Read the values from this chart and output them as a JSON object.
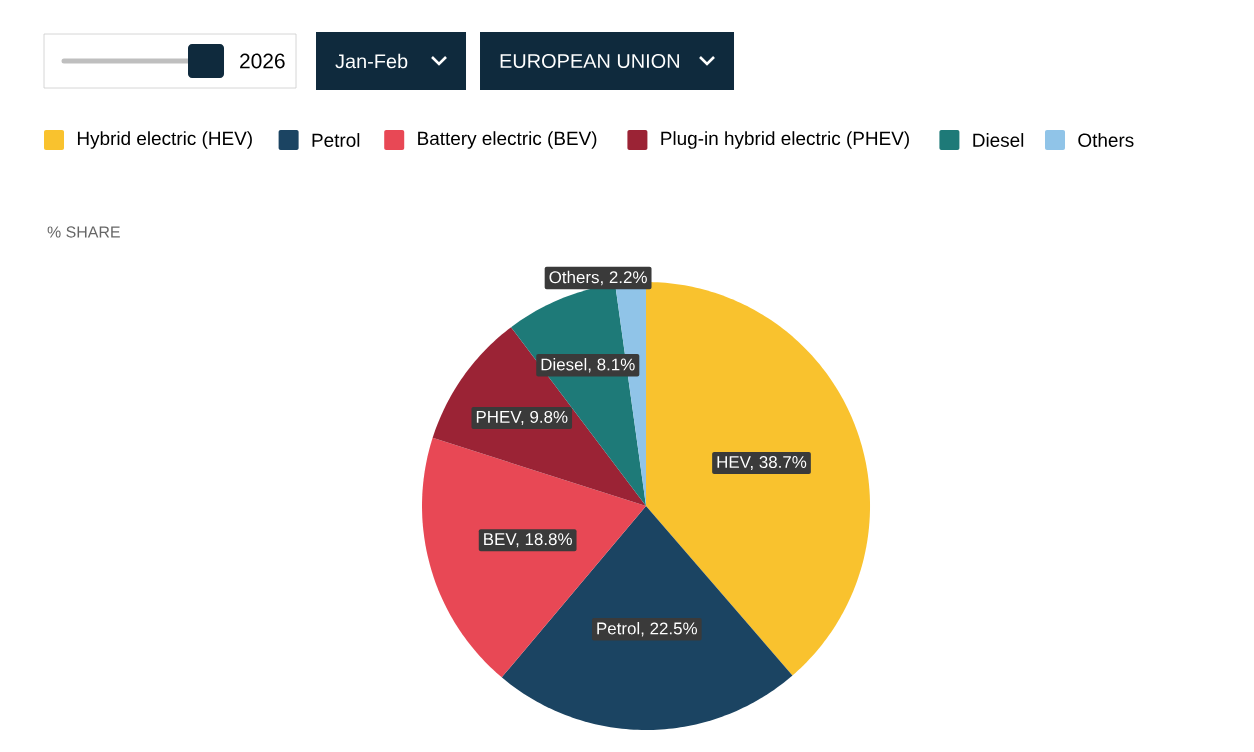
{
  "chart_data": {
    "type": "pie",
    "categories": [
      "Hybrid electric (HEV)",
      "Petrol",
      "Battery electric (BEV)",
      "Plug-in hybrid electric (PHEV)",
      "Diesel",
      "Others"
    ],
    "values": [
      38.7,
      22.5,
      18.8,
      9.8,
      8.1,
      2.2
    ],
    "colors": [
      "#f9c22e",
      "#1b4462",
      "#e84855",
      "#9b2335",
      "#1e7a78",
      "#90c4e8"
    ],
    "value_labels": [
      "HEV, 38.7%",
      "Petrol, 22.5%",
      "BEV, 18.8%",
      "PHEV, 9.8%",
      "Diesel, 8.1%",
      "Others, 2.2%"
    ],
    "legend": "top",
    "annotations": [
      "2026",
      "Jan-Feb",
      "EUROPEAN UNION",
      "% SHARE"
    ]
  }
}
